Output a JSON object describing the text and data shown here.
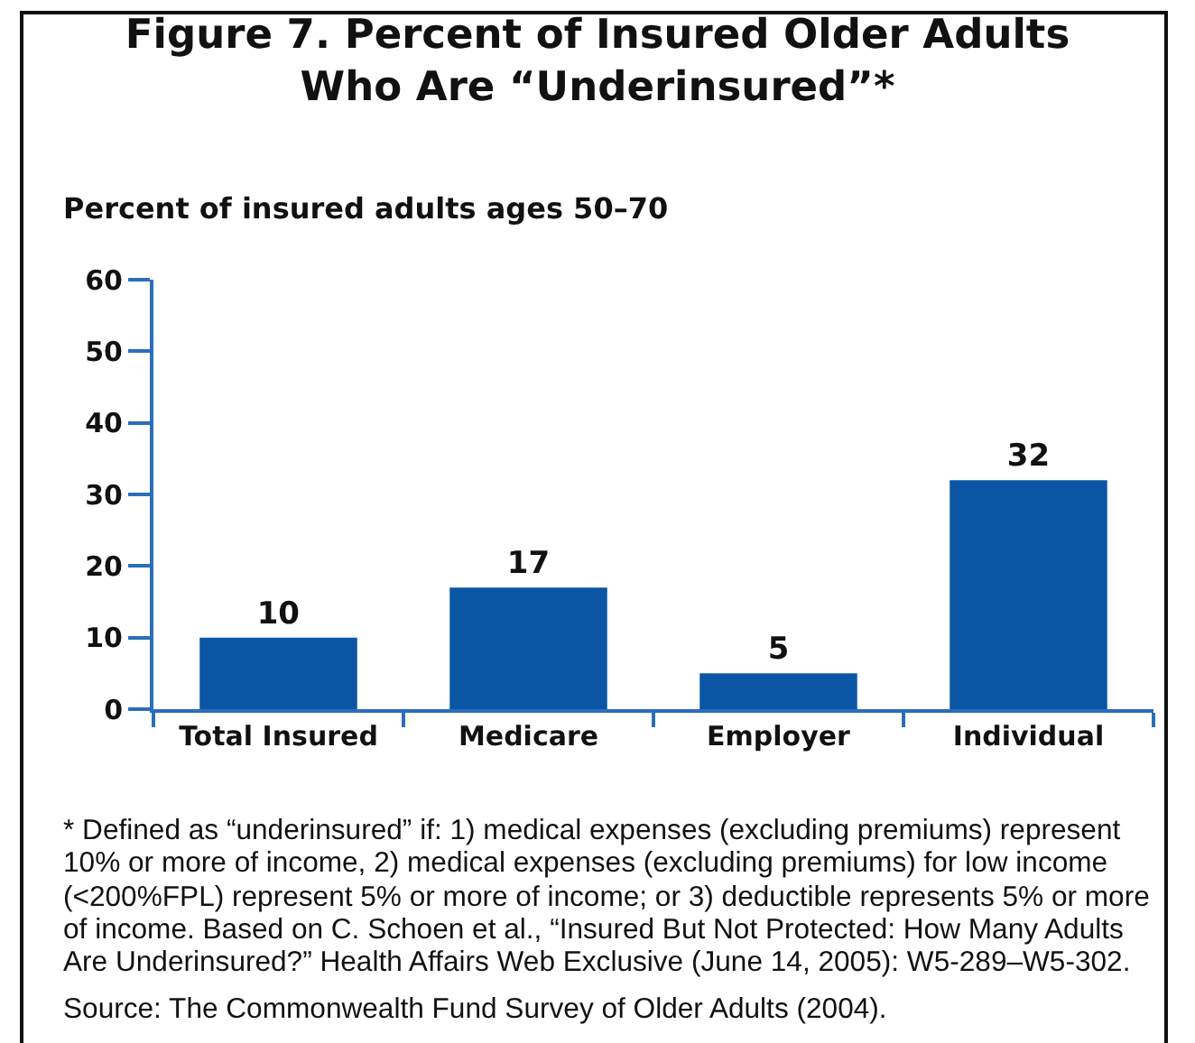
{
  "chart_data": {
    "type": "bar",
    "title": "Figure 7. Percent of Insured Older Adults\nWho Are “Underinsured”*",
    "ylabel": "Percent of insured adults ages 50–70",
    "categories": [
      "Total Insured",
      "Medicare",
      "Employer",
      "Individual"
    ],
    "values": [
      10,
      17,
      5,
      32
    ],
    "color": "#0b56a4",
    "ylim": [
      0,
      60
    ],
    "yticks": [
      0,
      10,
      20,
      30,
      40,
      50,
      60
    ],
    "data_labels": true,
    "annotations": [
      "* Defined as “underinsured” if: 1) medical expenses (excluding premiums) represent 10% or more of income, 2) medical expenses (excluding premiums) for low income (<200%FPL) represent 5% or more of income; or 3) deductible represents 5% or more of income. Based on C. Schoen et al., “Insured But Not Protected: How Many Adults Are Underinsured?” Health Affairs Web Exclusive (June 14, 2005): W5-289–W5-302.",
      "Source: The Commonwealth Fund Survey of Older Adults (2004)."
    ]
  }
}
